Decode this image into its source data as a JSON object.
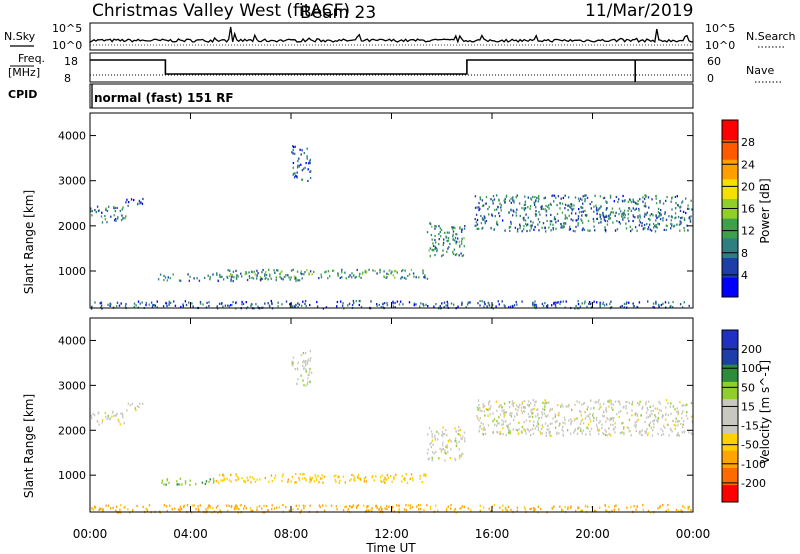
{
  "header": {
    "station": "Christmas Valley West (fitACF)",
    "beam": "Beam 23",
    "date": "11/Mar/2019"
  },
  "noise_panel": {
    "left_label": "N.Sky",
    "right_label": "N.Search",
    "left_ticks": [
      "10^5",
      "10^0"
    ],
    "right_ticks": [
      "10^5",
      "10^0"
    ]
  },
  "freq_panel": {
    "left_label": "Freq.",
    "left_unit": "[MHz]",
    "right_label": "Nave",
    "left_ticks": [
      "18",
      "8"
    ],
    "right_ticks": [
      "60",
      "0"
    ]
  },
  "cpid": {
    "label": "CPID",
    "text": "normal (fast) 151 RF"
  },
  "colors": {
    "power": [
      "#0000ff",
      "#1d3ea8",
      "#2e7f7f",
      "#3da04c",
      "#8fce2b",
      "#f5e000",
      "#ffa000",
      "#ff5a00",
      "#ff0000"
    ],
    "velocity": [
      "#ff0000",
      "#ff6a00",
      "#ffa500",
      "#ffd000",
      "#c8c8c0",
      "#c8c8c0",
      "#8fce2b",
      "#2e8b3a",
      "#1d3ea8",
      "#2030c0"
    ]
  },
  "chart_data": [
    {
      "type": "heatmap",
      "panel": "power",
      "ylabel": "Slant Range [km]",
      "yticks": [
        "1000",
        "2000",
        "3000",
        "4000"
      ],
      "ylim": [
        180,
        4500
      ],
      "xlim": [
        0,
        24
      ],
      "colorbar": {
        "label": "Power [dB]",
        "ticks": [
          "4",
          "8",
          "12",
          "16",
          "20",
          "24",
          "28"
        ],
        "range": [
          0,
          30
        ]
      },
      "regions": [
        {
          "t0": 0.0,
          "t1": 1.4,
          "r0": 2100,
          "r1": 2450,
          "level": 8
        },
        {
          "t0": 1.4,
          "t1": 2.1,
          "r0": 2450,
          "r1": 2650,
          "level": 6
        },
        {
          "t0": 2.7,
          "t1": 8.5,
          "r0": 800,
          "r1": 950,
          "level": 8
        },
        {
          "t0": 5.0,
          "t1": 13.4,
          "r0": 850,
          "r1": 1050,
          "level": 10
        },
        {
          "t0": 8.0,
          "t1": 8.8,
          "r0": 3000,
          "r1": 3800,
          "level": 6
        },
        {
          "t0": 13.4,
          "t1": 14.9,
          "r0": 1350,
          "r1": 2100,
          "level": 9
        },
        {
          "t0": 15.3,
          "t1": 24.0,
          "r0": 1900,
          "r1": 2700,
          "level": 8
        },
        {
          "t0": 0.0,
          "t1": 24.0,
          "r0": 190,
          "r1": 360,
          "level": 6
        }
      ]
    },
    {
      "type": "heatmap",
      "panel": "velocity",
      "xlabel": "Time UT",
      "ylabel": "Slant Range [km]",
      "xticks": [
        "00:00",
        "04:00",
        "08:00",
        "12:00",
        "16:00",
        "20:00",
        "00:00"
      ],
      "yticks": [
        "1000",
        "2000",
        "3000",
        "4000"
      ],
      "ylim": [
        180,
        4500
      ],
      "xlim": [
        0,
        24
      ],
      "colorbar": {
        "label": "Velocity [m s^-1]",
        "ticks": [
          "-200",
          "-100",
          "-50",
          "-15",
          "15",
          "50",
          "100",
          "200"
        ],
        "range": [
          -250,
          250
        ]
      },
      "regions": [
        {
          "t0": 0.0,
          "t1": 1.4,
          "r0": 2150,
          "r1": 2450,
          "level": 0
        },
        {
          "t0": 1.4,
          "t1": 2.1,
          "r0": 2450,
          "r1": 2650,
          "level": 0
        },
        {
          "t0": 2.7,
          "t1": 5.0,
          "r0": 800,
          "r1": 950,
          "level": 40
        },
        {
          "t0": 5.0,
          "t1": 13.4,
          "r0": 850,
          "r1": 1050,
          "level": -40
        },
        {
          "t0": 8.0,
          "t1": 8.8,
          "r0": 3000,
          "r1": 3800,
          "level": 5
        },
        {
          "t0": 13.4,
          "t1": 14.9,
          "r0": 1350,
          "r1": 2100,
          "level": 0
        },
        {
          "t0": 15.3,
          "t1": 24.0,
          "r0": 1900,
          "r1": 2700,
          "level": 0
        },
        {
          "t0": 0.0,
          "t1": 24.0,
          "r0": 190,
          "r1": 360,
          "level": -60
        }
      ]
    }
  ]
}
